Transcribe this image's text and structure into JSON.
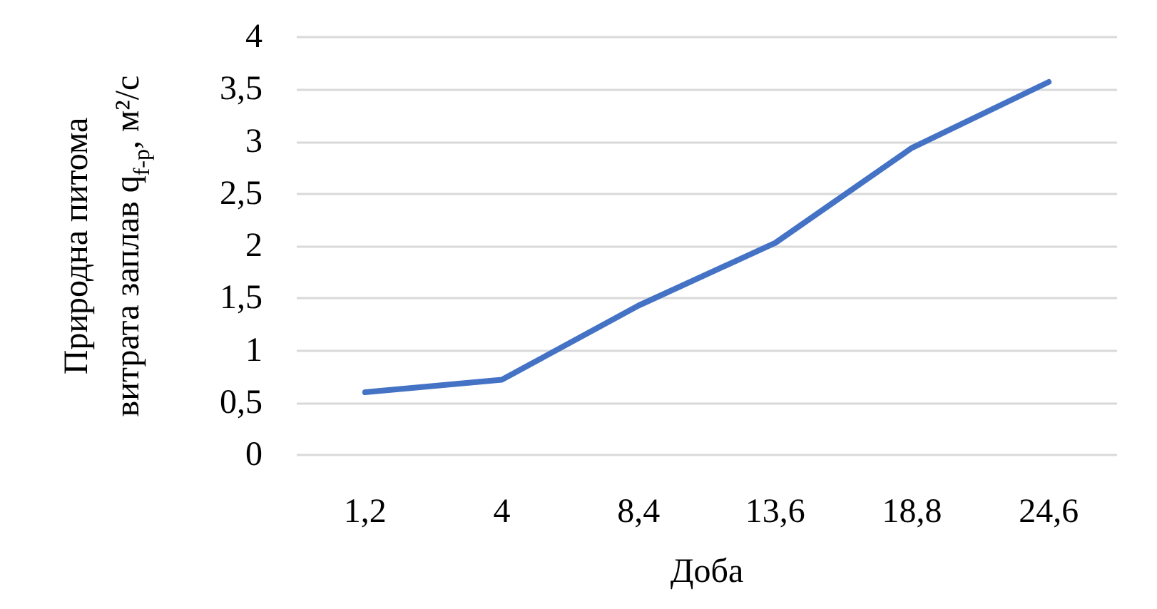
{
  "chart_data": {
    "type": "line",
    "xlabel": "Доба",
    "ylabel": "Природна питома\nвитрата заплав q$_{f-p}$, м²/с",
    "categories": [
      "1,2",
      "4",
      "8,4",
      "13,6",
      "18,8",
      "24,6"
    ],
    "series": [
      {
        "color": "#4472c4",
        "values": [
          0.6,
          0.72,
          1.43,
          2.03,
          2.94,
          3.57
        ]
      }
    ],
    "ylim": [
      0,
      4
    ],
    "yticks": [
      0,
      {
        "value": 0.5,
        "label": "0,5"
      },
      1,
      {
        "value": 1.5,
        "label": "1,5"
      },
      2,
      {
        "value": 2.5,
        "label": "2,5"
      },
      3,
      {
        "value": 3.5,
        "label": "3,5"
      },
      4
    ],
    "grid": "y",
    "marker": "none",
    "line_style": "solid"
  }
}
